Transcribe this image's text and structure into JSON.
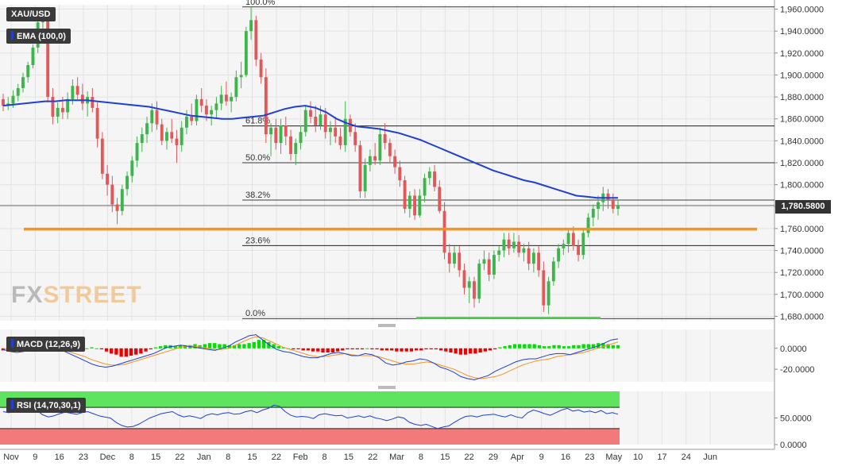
{
  "symbol": "XAU/USD",
  "logo": {
    "part1": "FX",
    "part2": "STREET"
  },
  "last_price_label": "1,780.5800",
  "colors": {
    "bull": "#3cb54a",
    "bear": "#e0585a",
    "ema": "#1f3fd6",
    "support": "#f7941d",
    "fib": "#000000",
    "green_line": "#2eb82e",
    "macd_line": "#1f3fd6",
    "signal_line": "#f7941d",
    "hist_pos": "#00e000",
    "hist_neg": "#ee0000",
    "rsi_line": "#1f3fd6",
    "rsi_over": "#4ee24e",
    "rsi_under": "#f26d6d"
  },
  "chart_data": [
    {
      "type": "candlestick",
      "title": "XAU/USD",
      "indicator_label": "EMA (100,0)",
      "ylim": [
        1676,
        1964
      ],
      "yticks": [
        1680,
        1700,
        1720,
        1740,
        1760,
        1780,
        1800,
        1820,
        1840,
        1860,
        1880,
        1900,
        1920,
        1940,
        1960
      ],
      "ytick_labels": [
        "1,680.0000",
        "1,700.0000",
        "1,720.0000",
        "1,740.0000",
        "1,760.0000",
        "1,780.0000",
        "1,800.0000",
        "1,820.0000",
        "1,840.0000",
        "1,860.0000",
        "1,880.0000",
        "1,900.0000",
        "1,920.0000",
        "1,940.0000",
        "1,960.0000"
      ],
      "xtick_labels": [
        "Nov",
        "9",
        "16",
        "23",
        "Dec",
        "8",
        "15",
        "22",
        "Jan",
        "8",
        "15",
        "22",
        "Feb",
        "8",
        "15",
        "22",
        "Mar",
        "8",
        "15",
        "22",
        "29",
        "Apr",
        "9",
        "16",
        "23",
        "May",
        "10",
        "17",
        "24",
        "Jun"
      ],
      "candles_ohlc": [
        [
          1878,
          1883,
          1867,
          1872
        ],
        [
          1872,
          1880,
          1868,
          1874
        ],
        [
          1874,
          1886,
          1870,
          1881
        ],
        [
          1881,
          1892,
          1876,
          1888
        ],
        [
          1888,
          1902,
          1884,
          1898
        ],
        [
          1898,
          1912,
          1893,
          1909
        ],
        [
          1909,
          1928,
          1906,
          1925
        ],
        [
          1925,
          1952,
          1920,
          1948
        ],
        [
          1948,
          1960,
          1933,
          1950
        ],
        [
          1950,
          1958,
          1875,
          1880
        ],
        [
          1880,
          1888,
          1855,
          1862
        ],
        [
          1862,
          1875,
          1856,
          1870
        ],
        [
          1870,
          1880,
          1860,
          1866
        ],
        [
          1866,
          1884,
          1860,
          1878
        ],
        [
          1878,
          1896,
          1873,
          1890
        ],
        [
          1890,
          1898,
          1878,
          1882
        ],
        [
          1882,
          1892,
          1868,
          1874
        ],
        [
          1874,
          1885,
          1862,
          1880
        ],
        [
          1880,
          1888,
          1866,
          1870
        ],
        [
          1870,
          1875,
          1834,
          1842
        ],
        [
          1842,
          1848,
          1805,
          1810
        ],
        [
          1810,
          1818,
          1790,
          1800
        ],
        [
          1800,
          1808,
          1775,
          1782
        ],
        [
          1782,
          1788,
          1764,
          1776
        ],
        [
          1776,
          1800,
          1772,
          1796
        ],
        [
          1796,
          1812,
          1790,
          1808
        ],
        [
          1808,
          1826,
          1802,
          1822
        ],
        [
          1822,
          1844,
          1816,
          1838
        ],
        [
          1838,
          1852,
          1830,
          1846
        ],
        [
          1846,
          1862,
          1838,
          1856
        ],
        [
          1856,
          1874,
          1848,
          1868
        ],
        [
          1868,
          1876,
          1850,
          1855
        ],
        [
          1855,
          1860,
          1836,
          1840
        ],
        [
          1840,
          1852,
          1832,
          1848
        ],
        [
          1848,
          1860,
          1838,
          1842
        ],
        [
          1842,
          1850,
          1820,
          1836
        ],
        [
          1836,
          1858,
          1830,
          1852
        ],
        [
          1852,
          1868,
          1846,
          1862
        ],
        [
          1862,
          1874,
          1854,
          1858
        ],
        [
          1858,
          1882,
          1854,
          1878
        ],
        [
          1878,
          1888,
          1866,
          1872
        ],
        [
          1872,
          1878,
          1858,
          1864
        ],
        [
          1864,
          1872,
          1854,
          1868
        ],
        [
          1868,
          1880,
          1860,
          1874
        ],
        [
          1874,
          1890,
          1868,
          1882
        ],
        [
          1882,
          1894,
          1872,
          1876
        ],
        [
          1876,
          1884,
          1866,
          1880
        ],
        [
          1880,
          1904,
          1876,
          1898
        ],
        [
          1898,
          1912,
          1888,
          1900
        ],
        [
          1900,
          1944,
          1898,
          1940
        ],
        [
          1940,
          1962,
          1932,
          1950
        ],
        [
          1950,
          1954,
          1908,
          1914
        ],
        [
          1914,
          1920,
          1892,
          1898
        ],
        [
          1898,
          1906,
          1838,
          1846
        ],
        [
          1846,
          1856,
          1826,
          1852
        ],
        [
          1852,
          1860,
          1832,
          1838
        ],
        [
          1838,
          1860,
          1828,
          1854
        ],
        [
          1854,
          1862,
          1836,
          1844
        ],
        [
          1844,
          1850,
          1822,
          1828
        ],
        [
          1828,
          1842,
          1818,
          1838
        ],
        [
          1838,
          1854,
          1832,
          1848
        ],
        [
          1848,
          1872,
          1844,
          1868
        ],
        [
          1868,
          1876,
          1856,
          1862
        ],
        [
          1862,
          1872,
          1848,
          1854
        ],
        [
          1854,
          1872,
          1850,
          1864
        ],
        [
          1864,
          1870,
          1842,
          1848
        ],
        [
          1848,
          1858,
          1836,
          1852
        ],
        [
          1852,
          1862,
          1838,
          1844
        ],
        [
          1844,
          1852,
          1832,
          1836
        ],
        [
          1836,
          1876,
          1830,
          1860
        ],
        [
          1860,
          1864,
          1844,
          1848
        ],
        [
          1848,
          1856,
          1830,
          1836
        ],
        [
          1836,
          1840,
          1788,
          1794
        ],
        [
          1794,
          1824,
          1788,
          1818
        ],
        [
          1818,
          1832,
          1812,
          1826
        ],
        [
          1826,
          1838,
          1818,
          1822
        ],
        [
          1822,
          1852,
          1818,
          1846
        ],
        [
          1846,
          1856,
          1832,
          1838
        ],
        [
          1838,
          1842,
          1820,
          1826
        ],
        [
          1826,
          1832,
          1810,
          1816
        ],
        [
          1816,
          1822,
          1798,
          1804
        ],
        [
          1804,
          1808,
          1774,
          1778
        ],
        [
          1778,
          1794,
          1770,
          1790
        ],
        [
          1790,
          1796,
          1768,
          1772
        ],
        [
          1772,
          1796,
          1770,
          1790
        ],
        [
          1790,
          1810,
          1784,
          1806
        ],
        [
          1806,
          1816,
          1800,
          1812
        ],
        [
          1812,
          1818,
          1794,
          1798
        ],
        [
          1798,
          1804,
          1774,
          1776
        ],
        [
          1776,
          1784,
          1732,
          1738
        ],
        [
          1738,
          1746,
          1720,
          1728
        ],
        [
          1728,
          1744,
          1724,
          1738
        ],
        [
          1738,
          1744,
          1716,
          1722
        ],
        [
          1722,
          1728,
          1700,
          1706
        ],
        [
          1706,
          1716,
          1692,
          1712
        ],
        [
          1712,
          1716,
          1688,
          1696
        ],
        [
          1696,
          1732,
          1692,
          1728
        ],
        [
          1728,
          1740,
          1722,
          1732
        ],
        [
          1732,
          1738,
          1712,
          1718
        ],
        [
          1718,
          1740,
          1714,
          1736
        ],
        [
          1736,
          1744,
          1730,
          1740
        ],
        [
          1740,
          1756,
          1734,
          1750
        ],
        [
          1750,
          1756,
          1736,
          1742
        ],
        [
          1742,
          1756,
          1738,
          1748
        ],
        [
          1748,
          1754,
          1734,
          1738
        ],
        [
          1738,
          1746,
          1730,
          1742
        ],
        [
          1742,
          1748,
          1722,
          1728
        ],
        [
          1728,
          1742,
          1720,
          1738
        ],
        [
          1738,
          1744,
          1716,
          1722
        ],
        [
          1722,
          1730,
          1684,
          1690
        ],
        [
          1690,
          1716,
          1682,
          1712
        ],
        [
          1712,
          1734,
          1708,
          1730
        ],
        [
          1730,
          1746,
          1724,
          1742
        ],
        [
          1742,
          1750,
          1736,
          1746
        ],
        [
          1746,
          1760,
          1738,
          1756
        ],
        [
          1756,
          1762,
          1740,
          1744
        ],
        [
          1744,
          1750,
          1730,
          1736
        ],
        [
          1736,
          1760,
          1732,
          1756
        ],
        [
          1756,
          1774,
          1752,
          1770
        ],
        [
          1770,
          1782,
          1762,
          1778
        ],
        [
          1778,
          1790,
          1768,
          1784
        ],
        [
          1784,
          1798,
          1776,
          1792
        ],
        [
          1792,
          1796,
          1778,
          1786
        ],
        [
          1786,
          1792,
          1774,
          1778
        ],
        [
          1778,
          1786,
          1772,
          1781
        ]
      ],
      "ema_100": [
        1872,
        1873,
        1874,
        1875,
        1876,
        1876,
        1877,
        1877,
        1877,
        1876,
        1875,
        1874,
        1873,
        1872,
        1871,
        1869,
        1867,
        1865,
        1863,
        1862,
        1861,
        1860,
        1860,
        1861,
        1862,
        1863,
        1866,
        1869,
        1871,
        1872,
        1870,
        1866,
        1860,
        1856,
        1853,
        1852,
        1851,
        1849,
        1847,
        1844,
        1841,
        1837,
        1833,
        1829,
        1825,
        1821,
        1817,
        1813,
        1810,
        1807,
        1804,
        1802,
        1799,
        1796,
        1793,
        1790,
        1789,
        1788,
        1788,
        1788
      ],
      "support_level": 1759.5,
      "fibonacci": [
        {
          "label": "100.0%",
          "value": 1962
        },
        {
          "label": "61.8%",
          "value": 1853.5
        },
        {
          "label": "50.0%",
          "value": 1820
        },
        {
          "label": "38.2%",
          "value": 1786
        },
        {
          "label": "23.6%",
          "value": 1744.5
        },
        {
          "label": "0.0%",
          "value": 1678
        }
      ],
      "bottom_line": 1678.5
    },
    {
      "type": "bar",
      "title": "MACD (12,26,9)",
      "ylim": [
        -32,
        18
      ],
      "yticks": [
        0,
        -20
      ],
      "ytick_labels": [
        "0.0000",
        "-20.0000"
      ],
      "histogram": [
        -2,
        -3,
        -3,
        -2,
        -1,
        0,
        1,
        2,
        1,
        0,
        -1,
        -2,
        -2,
        -3,
        -3,
        -2,
        -1,
        0,
        1,
        0,
        -1,
        -3,
        -5,
        -6,
        -8,
        -8,
        -7,
        -6,
        -5,
        -3,
        -1,
        1,
        2,
        3,
        3,
        2,
        3,
        3,
        3,
        4,
        3,
        4,
        5,
        5,
        4,
        4,
        3,
        3,
        4,
        4,
        5,
        6,
        8,
        8,
        6,
        4,
        2,
        1,
        0,
        -1,
        -1,
        -2,
        -2,
        -3,
        -3,
        -4,
        -4,
        -4,
        -3,
        -2,
        -1,
        -1,
        -1,
        -1,
        0,
        -1,
        -1,
        -2,
        -2,
        -2,
        -3,
        -3,
        -3,
        -3,
        -2,
        -2,
        -1,
        -1,
        -1,
        -2,
        -3,
        -4,
        -5,
        -6,
        -6,
        -5,
        -5,
        -4,
        -3,
        -2,
        -1,
        1,
        2,
        3,
        4,
        4,
        4,
        4,
        4,
        3,
        2,
        2,
        3,
        3,
        2,
        2,
        3,
        3,
        4,
        4,
        4,
        5,
        5,
        4,
        3,
        3
      ],
      "macd_line": [
        -1,
        -3,
        -4,
        -3,
        -1,
        2,
        4,
        2,
        -1,
        -3,
        -6,
        -9,
        -12,
        -15,
        -17,
        -18,
        -17,
        -15,
        -13,
        -11,
        -9,
        -7,
        -5,
        -2,
        1,
        2,
        3,
        2,
        1,
        0,
        -1,
        -2,
        0,
        2,
        6,
        9,
        12,
        13,
        8,
        3,
        -1,
        -3,
        -4,
        -6,
        -8,
        -9,
        -9,
        -7,
        -5,
        -4,
        -5,
        -7,
        -7,
        -5,
        -6,
        -9,
        -14,
        -16,
        -15,
        -13,
        -12,
        -10,
        -11,
        -14,
        -18,
        -20,
        -23,
        -27,
        -29,
        -30,
        -28,
        -26,
        -22,
        -19,
        -16,
        -13,
        -11,
        -10,
        -10,
        -8,
        -6,
        -5,
        -5,
        -6,
        -4,
        -2,
        0,
        2,
        5,
        8,
        9
      ],
      "signal_line": [
        0,
        -1,
        -2,
        -2,
        -2,
        -1,
        0,
        0,
        -1,
        -2,
        -4,
        -6,
        -8,
        -11,
        -13,
        -15,
        -16,
        -16,
        -15,
        -13,
        -11,
        -9,
        -7,
        -5,
        -3,
        -1,
        1,
        2,
        2,
        1,
        0,
        -1,
        -1,
        0,
        3,
        6,
        9,
        11,
        10,
        7,
        4,
        1,
        -1,
        -3,
        -5,
        -7,
        -8,
        -8,
        -7,
        -6,
        -5,
        -6,
        -7,
        -7,
        -7,
        -8,
        -10,
        -12,
        -14,
        -15,
        -15,
        -14,
        -13,
        -14,
        -16,
        -18,
        -20,
        -23,
        -26,
        -28,
        -29,
        -28,
        -27,
        -25,
        -22,
        -19,
        -16,
        -14,
        -12,
        -11,
        -10,
        -8,
        -7,
        -6,
        -5,
        -4,
        -2,
        0,
        2,
        4,
        6
      ]
    },
    {
      "type": "line",
      "title": "RSI (14,70,30,1)",
      "ylim": [
        0,
        100
      ],
      "overbought": 70,
      "oversold": 30,
      "yticks": [
        50,
        0
      ],
      "ytick_labels": [
        "50.0000",
        "0.0000"
      ],
      "rsi": [
        62,
        60,
        64,
        67,
        69,
        67,
        64,
        56,
        52,
        54,
        58,
        61,
        59,
        57,
        60,
        62,
        58,
        54,
        52,
        50,
        42,
        36,
        33,
        34,
        38,
        44,
        50,
        54,
        58,
        60,
        62,
        56,
        52,
        54,
        52,
        49,
        55,
        58,
        56,
        59,
        60,
        57,
        58,
        62,
        64,
        60,
        65,
        68,
        74,
        72,
        62,
        55,
        52,
        53,
        52,
        49,
        56,
        58,
        56,
        54,
        55,
        50,
        52,
        54,
        51,
        54,
        50,
        48,
        45,
        48,
        52,
        50,
        42,
        38,
        36,
        38,
        34,
        30,
        33,
        35,
        42,
        48,
        53,
        54,
        52,
        55,
        56,
        57,
        54,
        52,
        56,
        52,
        50,
        60,
        65,
        62,
        58,
        55,
        60,
        65,
        68,
        63,
        65,
        61,
        63,
        60,
        64,
        58,
        60,
        57
      ]
    }
  ]
}
